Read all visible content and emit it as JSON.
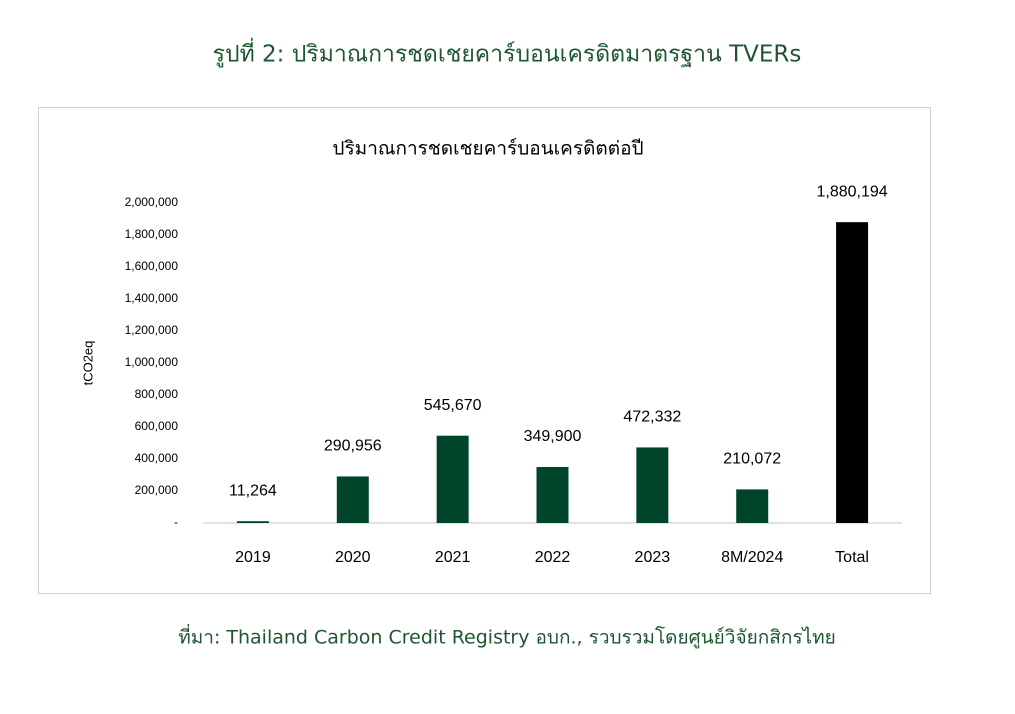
{
  "figure_title": "รูปที่ 2: ปริมาณการชดเชยคาร์บอนเครดิตมาตรฐาน TVERs",
  "source": "ที่มา: Thailand Carbon Credit Registry อบก., รวบรวมโดยศูนย์วิจัยกสิกรไทย",
  "chart_data": {
    "type": "bar",
    "title": "ปริมาณการชดเชยคาร์บอนเครดิตต่อปี",
    "y_label": "tCO2eq",
    "categories": [
      "2019",
      "2020",
      "2021",
      "2022",
      "2023",
      "8M/2024",
      "Total"
    ],
    "values": [
      11264,
      290956,
      545670,
      349900,
      472332,
      210072,
      1880194
    ],
    "value_labels": [
      "11,264",
      "290,956",
      "545,670",
      "349,900",
      "472,332",
      "210,072",
      "1,880,194"
    ],
    "colors": [
      "#00452a",
      "#00452a",
      "#00452a",
      "#00452a",
      "#00452a",
      "#00452a",
      "#000000"
    ],
    "ylim": [
      0,
      2000000
    ],
    "yticks": [
      {
        "value": 0,
        "label": "-"
      },
      {
        "value": 200000,
        "label": "200,000"
      },
      {
        "value": 400000,
        "label": "400,000"
      },
      {
        "value": 600000,
        "label": "600,000"
      },
      {
        "value": 800000,
        "label": "800,000"
      },
      {
        "value": 1000000,
        "label": "1,000,000"
      },
      {
        "value": 1200000,
        "label": "1,200,000"
      },
      {
        "value": 1400000,
        "label": "1,400,000"
      },
      {
        "value": 1600000,
        "label": "1,600,000"
      },
      {
        "value": 1800000,
        "label": "1,800,000"
      },
      {
        "value": 2000000,
        "label": "2,000,000"
      }
    ]
  }
}
